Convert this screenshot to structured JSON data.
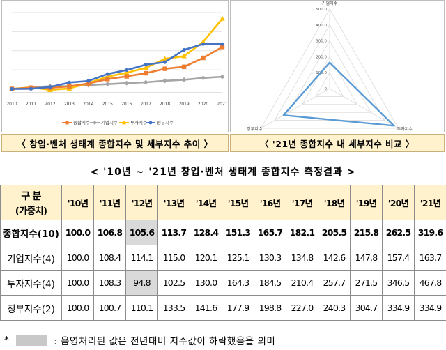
{
  "chart_data": [
    {
      "type": "line",
      "title": "",
      "x": [
        "2010",
        "2011",
        "2012",
        "2013",
        "2014",
        "2015",
        "2016",
        "2017",
        "2018",
        "2019",
        "2020",
        "2021"
      ],
      "ylim": [
        80,
        540
      ],
      "grid": true,
      "legend": "bottom",
      "series": [
        {
          "name": "종합지수",
          "color": "#ed7d31",
          "values": [
            100.0,
            106.8,
            105.6,
            113.7,
            128.4,
            151.3,
            165.7,
            182.1,
            205.5,
            215.8,
            262.5,
            319.6
          ]
        },
        {
          "name": "기업지수",
          "color": "#a5a5a5",
          "values": [
            100.0,
            108.4,
            114.1,
            115.0,
            120.1,
            125.1,
            130.3,
            134.8,
            142.6,
            147.8,
            157.4,
            163.7
          ]
        },
        {
          "name": "투자지수",
          "color": "#ffc000",
          "values": [
            100.0,
            108.3,
            94.8,
            102.5,
            130.0,
            164.3,
            184.5,
            210.4,
            257.7,
            271.5,
            346.5,
            467.8
          ]
        },
        {
          "name": "정부지수",
          "color": "#4472c4",
          "values": [
            100.0,
            100.7,
            110.1,
            133.5,
            141.6,
            177.9,
            198.8,
            227.0,
            240.3,
            304.7,
            334.9,
            334.9
          ]
        }
      ]
    },
    {
      "type": "radar",
      "axes": [
        "기업지수",
        "투자지수",
        "정부지수"
      ],
      "values": [
        163.7,
        467.8,
        334.9
      ],
      "ticks": [
        "0",
        "100.0",
        "200.0",
        "300.0",
        "400.0",
        "500.0"
      ],
      "rmax": 500,
      "color": "#5b9bd5"
    }
  ],
  "captions": {
    "left": "〈 창업·벤처 생태계 종합지수 및 세부지수 추이 〉",
    "right": "〈 '21년 종합지수 내 세부지수 비교 〉"
  },
  "table_title": "< '10년 ~ '21년 창업·벤처 생태계 종합지수 측정결과 >",
  "table": {
    "header_label_line1": "구 분",
    "header_label_line2": "(가중치)",
    "years": [
      "'10년",
      "'11년",
      "'12년",
      "'13년",
      "'14년",
      "'15년",
      "'16년",
      "'17년",
      "'18년",
      "'19년",
      "'20년",
      "'21년"
    ],
    "rows": [
      {
        "label": "종합지수(10)",
        "values": [
          "100.0",
          "106.8",
          "105.6",
          "113.7",
          "128.4",
          "151.3",
          "165.7",
          "182.1",
          "205.5",
          "215.8",
          "262.5",
          "319.6"
        ],
        "highlight": [
          2
        ]
      },
      {
        "label": "기업지수(4)",
        "values": [
          "100.0",
          "108.4",
          "114.1",
          "115.0",
          "120.1",
          "125.1",
          "130.3",
          "134.8",
          "142.6",
          "147.8",
          "157.4",
          "163.7"
        ],
        "highlight": []
      },
      {
        "label": "투자지수(4)",
        "values": [
          "100.0",
          "108.3",
          "94.8",
          "102.5",
          "130.0",
          "164.3",
          "184.5",
          "210.4",
          "257.7",
          "271.5",
          "346.5",
          "467.8"
        ],
        "highlight": [
          2
        ]
      },
      {
        "label": "정부지수(2)",
        "values": [
          "100.0",
          "100.7",
          "110.1",
          "133.5",
          "141.6",
          "177.9",
          "198.8",
          "227.0",
          "240.3",
          "304.7",
          "334.9",
          "334.9"
        ],
        "highlight": []
      }
    ]
  },
  "footnote": {
    "star": "*",
    "text": ": 음영처리된 값은 전년대비 지수값이 하락했음을 의미"
  }
}
